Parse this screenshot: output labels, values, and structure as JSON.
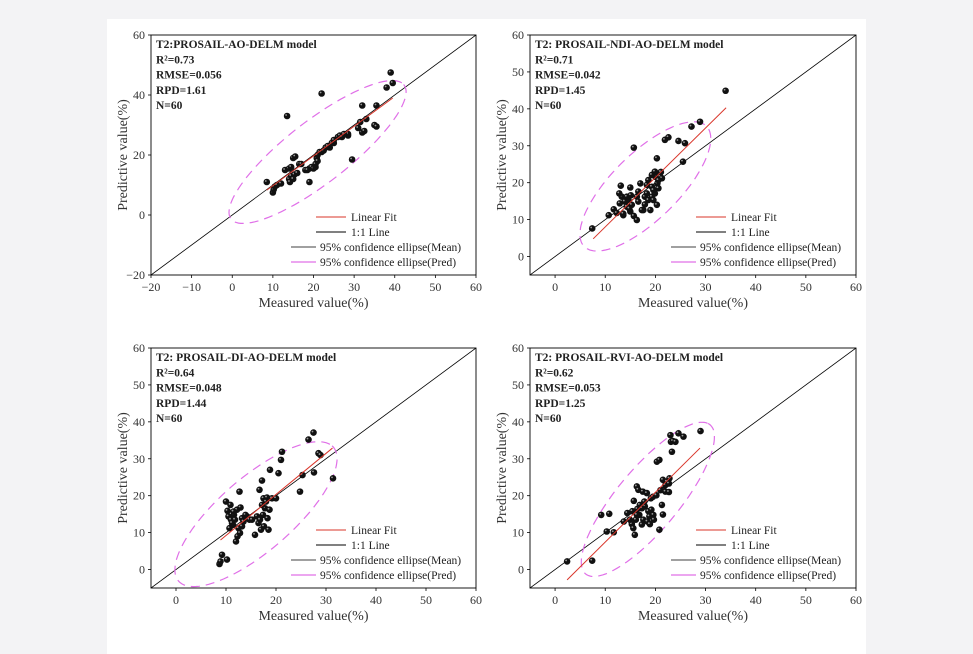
{
  "chart_data": [
    {
      "type": "scatter",
      "annotation": [
        "T2:PROSAIL-AO-DELM model",
        "R²=0.73",
        "RMSE=0.056",
        "RPD=1.61",
        "N=60"
      ],
      "xlabel": "Measured value(%)",
      "ylabel": "Predictive value(%)",
      "xlim": [
        -20,
        60
      ],
      "ylim": [
        -20,
        60
      ],
      "xticks": [
        "−20",
        "−10",
        "0",
        "10",
        "20",
        "30",
        "40",
        "50",
        "60"
      ],
      "yticks": [
        "−20",
        "0",
        "20",
        "40",
        "60"
      ],
      "xtick_values": [
        -20,
        -10,
        0,
        10,
        20,
        30,
        40,
        50,
        60
      ],
      "ytick_values": [
        -20,
        0,
        20,
        40,
        60
      ],
      "legend": [
        "Linear Fit",
        "1:1 Line",
        "95% confidence ellipse(Mean)",
        "95% confidence ellipse(Pred)"
      ],
      "legend_position": "bottom-right",
      "linear_fit": [
        [
          8.5,
          8.3
        ],
        [
          39.5,
          39
        ]
      ],
      "ellipse_pred": {
        "center": [
          21,
          21
        ],
        "semi_major": 31,
        "semi_minor": 9,
        "angle_deg": 48
      },
      "points": [
        [
          8.5,
          11
        ],
        [
          10,
          7.5
        ],
        [
          10.2,
          8.5
        ],
        [
          10.5,
          9.5
        ],
        [
          11,
          10
        ],
        [
          12,
          10.5
        ],
        [
          13,
          15
        ],
        [
          13.5,
          33
        ],
        [
          14,
          12
        ],
        [
          14,
          15.5
        ],
        [
          14.2,
          11
        ],
        [
          14.5,
          13
        ],
        [
          14.5,
          16
        ],
        [
          15,
          19
        ],
        [
          15.3,
          13.5
        ],
        [
          15.5,
          19.5
        ],
        [
          15,
          12
        ],
        [
          16,
          14
        ],
        [
          16.5,
          17
        ],
        [
          18,
          15
        ],
        [
          19,
          11
        ],
        [
          19,
          15.5
        ],
        [
          19.5,
          16
        ],
        [
          20,
          15.5
        ],
        [
          20.5,
          16
        ],
        [
          20.5,
          17
        ],
        [
          20.8,
          19
        ],
        [
          21,
          18
        ],
        [
          21,
          20
        ],
        [
          21.5,
          21
        ],
        [
          22,
          40.5
        ],
        [
          22,
          21
        ],
        [
          22.5,
          21.5
        ],
        [
          23,
          22.5
        ],
        [
          24,
          22.5
        ],
        [
          24.5,
          24
        ],
        [
          25,
          24
        ],
        [
          26,
          26
        ],
        [
          26.5,
          26.5
        ],
        [
          27,
          26
        ],
        [
          28.5,
          26.5
        ],
        [
          28.5,
          27
        ],
        [
          29.5,
          18.5
        ],
        [
          31,
          29
        ],
        [
          31.5,
          31
        ],
        [
          32,
          36.5
        ],
        [
          32,
          27.5
        ],
        [
          32.5,
          28
        ],
        [
          33,
          32
        ],
        [
          35,
          30
        ],
        [
          35.5,
          29.5
        ],
        [
          35.5,
          36.5
        ],
        [
          38,
          42.5
        ],
        [
          39,
          47.5
        ],
        [
          39.5,
          44
        ],
        [
          17,
          17
        ],
        [
          18.5,
          15
        ],
        [
          23.5,
          23
        ],
        [
          25,
          25
        ],
        [
          27.5,
          27
        ]
      ]
    },
    {
      "type": "scatter",
      "annotation": [
        "T2: PROSAIL-NDI-AO-DELM model",
        "R²=0.71",
        "RMSE=0.042",
        "RPD=1.45",
        "N=60"
      ],
      "xlabel": "Measured value(%)",
      "ylabel": "Predictive value(%)",
      "xlim": [
        -5,
        60
      ],
      "ylim": [
        -5,
        60
      ],
      "xticks": [
        "0",
        "10",
        "20",
        "30",
        "40",
        "50",
        "60"
      ],
      "yticks": [
        "0",
        "10",
        "20",
        "30",
        "40",
        "50",
        "60"
      ],
      "xtick_values": [
        0,
        10,
        20,
        30,
        40,
        50,
        60
      ],
      "ytick_values": [
        0,
        10,
        20,
        30,
        40,
        50,
        60
      ],
      "legend": [
        "Linear Fit",
        "1:1 Line",
        "95% confidence ellipse(Mean)",
        "95% confidence ellipse(Pred)"
      ],
      "legend_position": "bottom-right",
      "linear_fit": [
        [
          7.6,
          4.8
        ],
        [
          34.1,
          40.3
        ]
      ],
      "ellipse_pred": {
        "center": [
          18,
          19
        ],
        "semi_major": 20.5,
        "semi_minor": 7.5,
        "angle_deg": 56
      },
      "points": [
        [
          7.4,
          7.6
        ],
        [
          10.7,
          11.2
        ],
        [
          11.7,
          12.8
        ],
        [
          12.9,
          14.4
        ],
        [
          13.1,
          19.2
        ],
        [
          13.3,
          16.2
        ],
        [
          13.6,
          11.2
        ],
        [
          13.9,
          14.9
        ],
        [
          14.3,
          13.5
        ],
        [
          14.6,
          15.4
        ],
        [
          15,
          12.2
        ],
        [
          15,
          18.7
        ],
        [
          15.3,
          14
        ],
        [
          15.7,
          29.5
        ],
        [
          15.7,
          11
        ],
        [
          16.3,
          16.2
        ],
        [
          16.6,
          14.9
        ],
        [
          17,
          19.8
        ],
        [
          17.6,
          12.6
        ],
        [
          17.9,
          14.1
        ],
        [
          18.3,
          19.4
        ],
        [
          18.6,
          20.7
        ],
        [
          19,
          12.6
        ],
        [
          19.3,
          18.9
        ],
        [
          19.3,
          16.2
        ],
        [
          19.6,
          15.3
        ],
        [
          19.9,
          22.4
        ],
        [
          19.9,
          17.1
        ],
        [
          20,
          21.6
        ],
        [
          20.3,
          26.6
        ],
        [
          20.3,
          14
        ],
        [
          20.4,
          19.8
        ],
        [
          20.6,
          18.5
        ],
        [
          21,
          21.6
        ],
        [
          21.1,
          22.9
        ],
        [
          21.3,
          21.2
        ],
        [
          21.9,
          31.6
        ],
        [
          22.6,
          32.3
        ],
        [
          24.6,
          31.3
        ],
        [
          25.5,
          25.7
        ],
        [
          25.9,
          30.7
        ],
        [
          27.2,
          35.2
        ],
        [
          28.9,
          36.5
        ],
        [
          34,
          44.9
        ],
        [
          12.3,
          11.8
        ],
        [
          16.6,
          17.6
        ],
        [
          17.3,
          12.6
        ],
        [
          17.9,
          16.2
        ],
        [
          18.3,
          17.1
        ],
        [
          19.6,
          18
        ],
        [
          13.6,
          11.6
        ],
        [
          14.3,
          16.2
        ],
        [
          18.6,
          15.3
        ],
        [
          19.3,
          22.1
        ],
        [
          20.6,
          20.7
        ],
        [
          19.9,
          23
        ],
        [
          15.1,
          16.6
        ],
        [
          12.8,
          17.1
        ],
        [
          16.3,
          9.9
        ],
        [
          14.8,
          13
        ]
      ]
    },
    {
      "type": "scatter",
      "annotation": [
        "T2: PROSAIL-DI-AO-DELM model",
        "R²=0.64",
        "RMSE=0.048",
        "RPD=1.44",
        "N=60"
      ],
      "xlabel": "Measured value(%)",
      "ylabel": "Predictive value(%)",
      "xlim": [
        -5,
        60
      ],
      "ylim": [
        -5,
        60
      ],
      "xticks": [
        "0",
        "10",
        "20",
        "30",
        "40",
        "50",
        "60"
      ],
      "yticks": [
        "0",
        "10",
        "20",
        "30",
        "40",
        "50",
        "60"
      ],
      "xtick_values": [
        0,
        10,
        20,
        30,
        40,
        50,
        60
      ],
      "ytick_values": [
        0,
        10,
        20,
        30,
        40,
        50,
        60
      ],
      "legend": [
        "Linear Fit",
        "1:1 Line",
        "95% confidence ellipse(Mean)",
        "95% confidence ellipse(Pred)"
      ],
      "legend_position": "bottom-right",
      "linear_fit": [
        [
          8.9,
          8.0
        ],
        [
          31.3,
          32.9
        ]
      ],
      "ellipse_pred": {
        "center": [
          16,
          15
        ],
        "semi_major": 24,
        "semi_minor": 8.5,
        "angle_deg": 52
      },
      "points": [
        [
          8.7,
          1.5
        ],
        [
          8.9,
          2.2
        ],
        [
          9.2,
          4
        ],
        [
          10.2,
          2.7
        ],
        [
          10,
          18.4
        ],
        [
          10.3,
          15.9
        ],
        [
          10.5,
          14.4
        ],
        [
          10.7,
          11.2
        ],
        [
          11,
          13.5
        ],
        [
          11.4,
          12.1
        ],
        [
          11.6,
          14.8
        ],
        [
          12,
          7.6
        ],
        [
          12.3,
          9
        ],
        [
          12.5,
          11.2
        ],
        [
          12.7,
          21.1
        ],
        [
          12.8,
          9.9
        ],
        [
          12.9,
          16.8
        ],
        [
          13.2,
          13.9
        ],
        [
          13.5,
          13
        ],
        [
          14.2,
          14.4
        ],
        [
          14.7,
          13.5
        ],
        [
          15.8,
          9.4
        ],
        [
          16.2,
          14.4
        ],
        [
          16.5,
          12.6
        ],
        [
          16.7,
          21.6
        ],
        [
          17,
          10.8
        ],
        [
          17.2,
          24.1
        ],
        [
          17.4,
          14.8
        ],
        [
          17.5,
          19.3
        ],
        [
          17.6,
          11.7
        ],
        [
          17.8,
          16.6
        ],
        [
          18.2,
          19.5
        ],
        [
          18.3,
          13.9
        ],
        [
          18.5,
          10.8
        ],
        [
          18.7,
          16.2
        ],
        [
          18.8,
          27
        ],
        [
          19.2,
          19.3
        ],
        [
          20,
          19.3
        ],
        [
          20.5,
          26.1
        ],
        [
          21,
          29.7
        ],
        [
          21.2,
          31.9
        ],
        [
          24.8,
          21.1
        ],
        [
          25.3,
          25.6
        ],
        [
          26.5,
          35.2
        ],
        [
          27.6,
          26.3
        ],
        [
          27.5,
          37.1
        ],
        [
          28.5,
          31.5
        ],
        [
          28.9,
          31
        ],
        [
          31.4,
          24.7
        ],
        [
          11.2,
          12.6
        ],
        [
          11.8,
          13.5
        ],
        [
          12.2,
          16.2
        ],
        [
          13.9,
          14.8
        ],
        [
          15.2,
          13.5
        ],
        [
          17.2,
          17.5
        ],
        [
          18,
          18.4
        ],
        [
          10.9,
          17.5
        ],
        [
          11.5,
          15.7
        ],
        [
          13.2,
          11.7
        ],
        [
          16.8,
          13.5
        ]
      ]
    },
    {
      "type": "scatter",
      "annotation": [
        "T2: PROSAIL-RVI-AO-DELM model",
        "R²=0.62",
        "RMSE=0.053",
        "RPD=1.25",
        "N=60"
      ],
      "xlabel": "Measured value(%)",
      "ylabel": "Predictive value(%)",
      "xlim": [
        -5,
        60
      ],
      "ylim": [
        -5,
        60
      ],
      "xticks": [
        "0",
        "10",
        "20",
        "30",
        "40",
        "50",
        "60"
      ],
      "yticks": [
        "0",
        "10",
        "20",
        "30",
        "40",
        "50",
        "60"
      ],
      "xtick_values": [
        0,
        10,
        20,
        30,
        40,
        50,
        60
      ],
      "ytick_values": [
        0,
        10,
        20,
        30,
        40,
        50,
        60
      ],
      "legend": [
        "Linear Fit",
        "1:1 Line",
        "95% confidence ellipse(Mean)",
        "95% confidence ellipse(Pred)"
      ],
      "legend_position": "bottom-right",
      "linear_fit": [
        [
          2.4,
          -2.8
        ],
        [
          28.9,
          32.9
        ]
      ],
      "ellipse_pred": {
        "center": [
          18.5,
          19
        ],
        "semi_major": 23.8,
        "semi_minor": 6.8,
        "angle_deg": 60
      },
      "points": [
        [
          2.4,
          2.2
        ],
        [
          7.4,
          2.4
        ],
        [
          9.2,
          14.8
        ],
        [
          10.3,
          10.3
        ],
        [
          10.8,
          15.1
        ],
        [
          11.7,
          10.1
        ],
        [
          13.7,
          13
        ],
        [
          14.4,
          15.3
        ],
        [
          15.3,
          12.3
        ],
        [
          15.6,
          11.2
        ],
        [
          15.7,
          18.6
        ],
        [
          15.9,
          9.4
        ],
        [
          16.1,
          13.5
        ],
        [
          16.3,
          22.5
        ],
        [
          16.4,
          16.4
        ],
        [
          16.6,
          21.6
        ],
        [
          16.8,
          14.8
        ],
        [
          16.9,
          17.5
        ],
        [
          17.3,
          12.2
        ],
        [
          17.5,
          21.1
        ],
        [
          17.6,
          13.5
        ],
        [
          17.9,
          17.1
        ],
        [
          18.3,
          20.7
        ],
        [
          18.4,
          13
        ],
        [
          18.8,
          14.4
        ],
        [
          18.9,
          12.3
        ],
        [
          19.1,
          19.3
        ],
        [
          19.5,
          19.7
        ],
        [
          19.6,
          14.8
        ],
        [
          19.7,
          13.5
        ],
        [
          20.3,
          29.2
        ],
        [
          20.8,
          29.7
        ],
        [
          20.8,
          10.8
        ],
        [
          21.3,
          17.5
        ],
        [
          21.5,
          14.9
        ],
        [
          21.5,
          24.3
        ],
        [
          21.6,
          21.6
        ],
        [
          22,
          21.1
        ],
        [
          22.3,
          23.8
        ],
        [
          22.7,
          21
        ],
        [
          22.8,
          24.7
        ],
        [
          23,
          36.4
        ],
        [
          23.1,
          34.6
        ],
        [
          23.3,
          31.9
        ],
        [
          23.5,
          34.8
        ],
        [
          24,
          34.6
        ],
        [
          24.6,
          36.9
        ],
        [
          25.6,
          36
        ],
        [
          29,
          37.5
        ],
        [
          14.9,
          13.5
        ],
        [
          15.4,
          15.8
        ],
        [
          17.8,
          18.4
        ],
        [
          18.6,
          15.8
        ],
        [
          19.2,
          16.2
        ],
        [
          22,
          22.9
        ],
        [
          22.7,
          23.3
        ],
        [
          17.3,
          16.6
        ],
        [
          16.3,
          14.8
        ],
        [
          20.2,
          20.1
        ],
        [
          21,
          21.5
        ]
      ]
    }
  ],
  "colors": {
    "points": "#111111",
    "linear_fit": "#d9352a",
    "one_to_one": "#000000",
    "ellipse_mean": "#000000",
    "ellipse_pred": "#e070e8",
    "axes": "#000000"
  }
}
